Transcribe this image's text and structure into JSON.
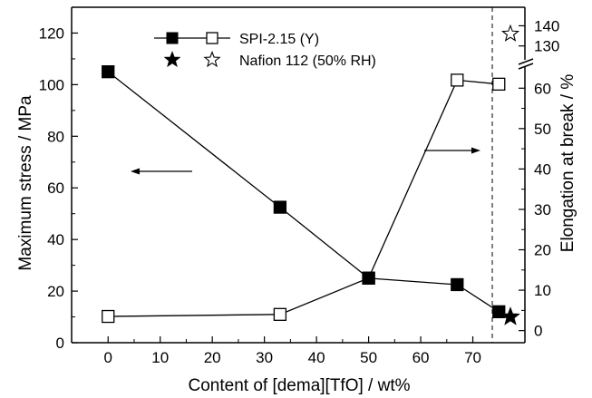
{
  "chart_data": {
    "type": "line",
    "xlabel": "Content of [dema][TfO] / wt%",
    "ylabel_left": "Maximum stress / MPa",
    "ylabel_right": "Elongation at break / %",
    "x_ticks": [
      "0",
      "10",
      "20",
      "30",
      "40",
      "50",
      "60",
      "70"
    ],
    "x_range": [
      -7,
      80
    ],
    "left_ticks": [
      "0",
      "20",
      "40",
      "60",
      "80",
      "100",
      "120"
    ],
    "left_range": [
      0,
      130
    ],
    "right_ticks_lower": [
      "0",
      "10",
      "20",
      "30",
      "40",
      "50",
      "60"
    ],
    "right_range_lower": [
      -3,
      65
    ],
    "right_ticks_upper": [
      "130",
      "140"
    ],
    "right_range_upper": [
      124,
      142
    ],
    "axis_break_on_right": true,
    "series": [
      {
        "name": "SPI-2.15 (Y)",
        "axis": "left",
        "marker": "filled-square",
        "x": [
          0,
          33,
          50,
          67,
          75
        ],
        "y": [
          105,
          52.5,
          25,
          22.5,
          12
        ]
      },
      {
        "name": "SPI-2.15 (Y)",
        "axis": "right",
        "marker": "open-square",
        "x": [
          0,
          33,
          50,
          67,
          75
        ],
        "y": [
          3.5,
          4,
          13,
          62,
          61
        ]
      }
    ],
    "reference": {
      "name": "Nafion 112 (50% RH)",
      "stress": 10,
      "elongation": 136
    },
    "legend": [
      {
        "label": "SPI-2.15 (Y)"
      },
      {
        "label": "Nafion 112 (50% RH)"
      }
    ],
    "grid": false,
    "legend_position": "top-center",
    "arrows": [
      "left-pointing arrow marks the stress series",
      "right-pointing arrow marks the elongation series"
    ]
  }
}
